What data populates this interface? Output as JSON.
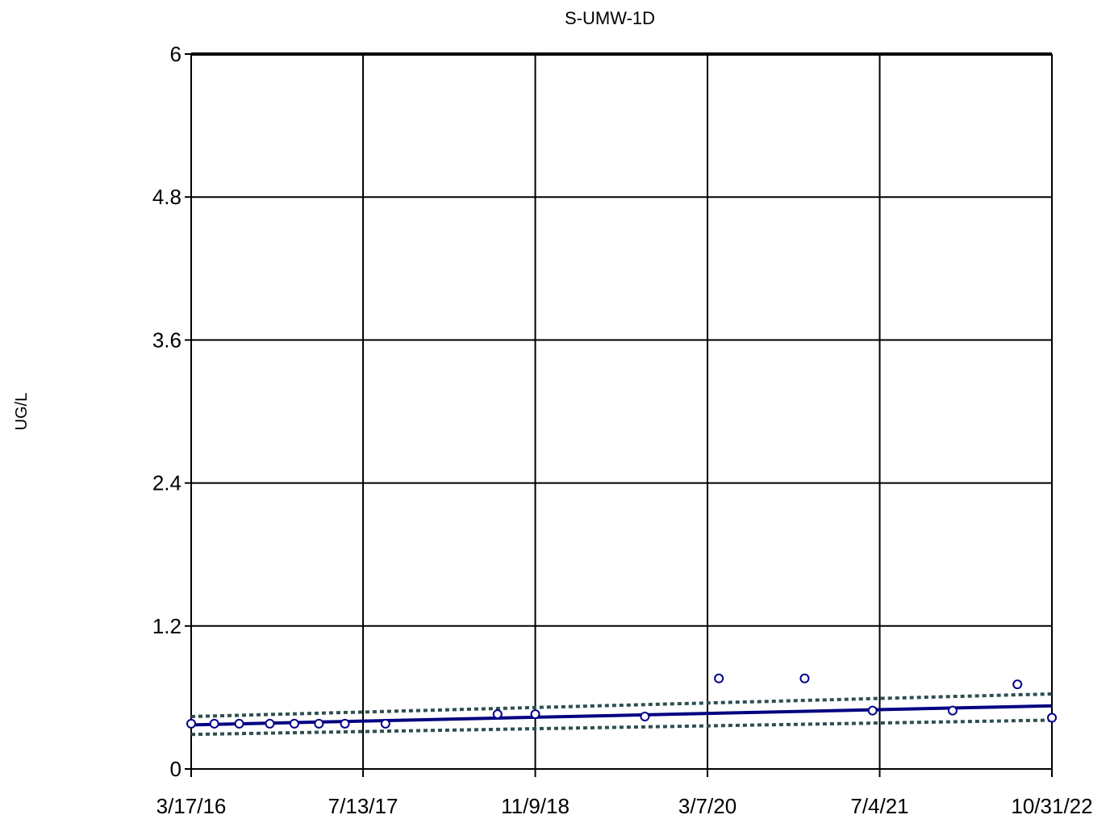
{
  "chart_data": {
    "type": "scatter",
    "title": "S-UMW-1D",
    "xlabel": "",
    "ylabel": "UG/L",
    "x_type": "date",
    "xlim": [
      "2016-03-17",
      "2022-10-31"
    ],
    "ylim": [
      0,
      6
    ],
    "grid": true,
    "x_ticks": [
      "2016-03-17",
      "2017-07-13",
      "2018-11-09",
      "2020-03-07",
      "2021-07-04",
      "2022-10-31"
    ],
    "x_tick_labels": [
      "3/17/16",
      "7/13/17",
      "11/9/18",
      "3/7/20",
      "7/4/21",
      "10/31/22"
    ],
    "y_ticks": [
      0,
      1.2,
      2.4,
      3.6,
      4.8,
      6
    ],
    "y_tick_labels": [
      "0",
      "1.2",
      "2.4",
      "3.6",
      "4.8",
      "6"
    ],
    "series": [
      {
        "kind": "points",
        "marker": "open-circle",
        "color": "#00008b",
        "x": [
          "2016-03-17",
          "2016-05-21",
          "2016-07-30",
          "2016-10-24",
          "2017-01-01",
          "2017-03-11",
          "2017-05-23",
          "2017-09-14",
          "2018-07-26",
          "2018-11-09",
          "2019-09-13",
          "2020-04-08",
          "2020-12-05",
          "2021-06-14",
          "2022-01-25",
          "2022-07-26",
          "2022-10-31"
        ],
        "y": [
          0.38,
          0.38,
          0.38,
          0.38,
          0.38,
          0.38,
          0.38,
          0.38,
          0.46,
          0.46,
          0.44,
          0.76,
          0.76,
          0.49,
          0.49,
          0.71,
          0.43
        ]
      },
      {
        "kind": "trend",
        "line": "solid",
        "color": "#000080",
        "x": [
          "2016-03-17",
          "2022-10-31"
        ],
        "y": [
          0.37,
          0.53
        ]
      },
      {
        "kind": "confidence-upper",
        "line": "dotted",
        "color": "#2f4f4f",
        "x": [
          "2016-03-17",
          "2022-10-31"
        ],
        "y": [
          0.44,
          0.63
        ]
      },
      {
        "kind": "confidence-lower",
        "line": "dotted",
        "color": "#2f4f4f",
        "x": [
          "2016-03-17",
          "2022-10-31"
        ],
        "y": [
          0.29,
          0.41
        ]
      }
    ]
  }
}
